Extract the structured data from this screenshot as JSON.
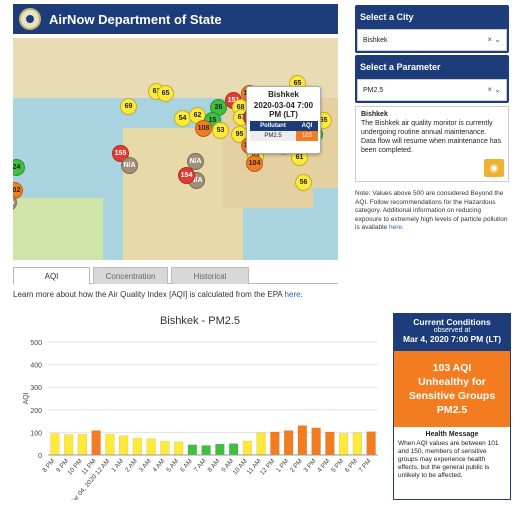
{
  "header": {
    "title": "AirNow Department of State"
  },
  "popup": {
    "city": "Bishkek",
    "datetime": "2020-03-04 7:00 PM (LT)",
    "col_pollutant": "Pollutant",
    "col_aqi": "AQI",
    "pollutant": "PM2.5",
    "aqi": "103"
  },
  "map_markers": [
    {
      "label": "62",
      "color": "#ffea3a"
    },
    {
      "label": "65",
      "color": "#ffea3a"
    },
    {
      "label": "69",
      "color": "#ffea3a"
    },
    {
      "label": "151",
      "color": "#e53a2f"
    },
    {
      "label": "121",
      "color": "#f47c20"
    },
    {
      "label": "26",
      "color": "#3fbf3f"
    },
    {
      "label": "68",
      "color": "#ffea3a"
    },
    {
      "label": "65",
      "color": "#ffea3a"
    },
    {
      "label": "56",
      "color": "#ffea3a"
    },
    {
      "label": "54",
      "color": "#ffea3a"
    },
    {
      "label": "62",
      "color": "#ffea3a"
    },
    {
      "label": "15",
      "color": "#3fbf3f"
    },
    {
      "label": "67",
      "color": "#ffea3a"
    },
    {
      "label": "177",
      "color": "#e53a2f"
    },
    {
      "label": "156",
      "color": "#e53a2f"
    },
    {
      "label": "112",
      "color": "#f47c20"
    },
    {
      "label": "93",
      "color": "#ffea3a"
    },
    {
      "label": "65",
      "color": "#ffea3a"
    },
    {
      "label": "108",
      "color": "#f47c20"
    },
    {
      "label": "53",
      "color": "#ffea3a"
    },
    {
      "label": "95",
      "color": "#ffea3a"
    },
    {
      "label": "137",
      "color": "#f47c20"
    },
    {
      "label": "76",
      "color": "#ffea3a"
    },
    {
      "label": "25",
      "color": "#3fbf3f"
    },
    {
      "label": "116",
      "color": "#f47c20"
    },
    {
      "label": "74",
      "color": "#ffea3a"
    },
    {
      "label": "87",
      "color": "#ffea3a"
    },
    {
      "label": "91",
      "color": "#ffea3a"
    },
    {
      "label": "83",
      "color": "#ffea3a"
    },
    {
      "label": "61",
      "color": "#ffea3a"
    },
    {
      "label": "104",
      "color": "#f47c20"
    },
    {
      "label": "24",
      "color": "#3fbf3f"
    },
    {
      "label": "155",
      "color": "#e53a2f"
    },
    {
      "label": "102",
      "color": "#f47c20"
    },
    {
      "label": "N/A",
      "color": "#a08d7a"
    },
    {
      "label": "N/A",
      "color": "#a08d7a"
    },
    {
      "label": "N/A",
      "color": "#a08d7a"
    },
    {
      "label": "N/A",
      "color": "#a08d7a"
    },
    {
      "label": "154",
      "color": "#e53a2f"
    },
    {
      "label": "56",
      "color": "#ffea3a"
    }
  ],
  "city_panel": {
    "title": "Select a City",
    "value": "Bishkek"
  },
  "param_panel": {
    "title": "Select a Parameter",
    "value": "PM2.5"
  },
  "icons": {
    "clear": "×",
    "dropdown": "⌄",
    "rss": "rss-icon"
  },
  "notice": {
    "title": "Bishkek",
    "text": "The Bishkek air quality monitor is currently undergoing routine annual maintenance. Data flow will resume when maintenance has been completed."
  },
  "note": {
    "text": "Note: Values above 500 are considered Beyond the AQI. Follow recommendations for the Hazardous category. Additional information on reducing exposure to extremely high levels of particle pollution is available ",
    "link": "here",
    "end": "."
  },
  "tabs": [
    {
      "label": "AQI",
      "active": true
    },
    {
      "label": "Concentration",
      "active": false
    },
    {
      "label": "Historical",
      "active": false
    }
  ],
  "learn": {
    "text": "Learn more about how the Air Quality Index [AQI] is calculated from the EPA ",
    "link": "here",
    "end": "."
  },
  "conditions": {
    "title": "Current Conditions",
    "observed": "observed at",
    "datetime": "Mar 4, 2020 7:00 PM (LT)",
    "aqi_line": "103 AQI",
    "category": "Unhealthy for Sensitive Groups",
    "pollutant": "PM2.5",
    "msg_title": "Health Message",
    "msg": "When AQI values are between 101 and 150, members of sensitive groups may experience health effects, but the general public is unlikely to be affected."
  },
  "chart_data": {
    "type": "bar",
    "title": "Bishkek - PM2.5",
    "ylabel": "AQI",
    "xlabel": "",
    "ylim": [
      0,
      500
    ],
    "yticks": [
      0,
      100,
      200,
      300,
      400,
      500
    ],
    "categories": [
      "8 PM",
      "9 PM",
      "10 PM",
      "11 PM",
      "Mar 04, 2020 12 AM",
      "1 AM",
      "2 AM",
      "3 AM",
      "4 AM",
      "5 AM",
      "6 AM",
      "7 AM",
      "8 AM",
      "9 AM",
      "10 AM",
      "11 AM",
      "12 PM",
      "1 PM",
      "2 PM",
      "3 PM",
      "4 PM",
      "5 PM",
      "6 PM",
      "7 PM"
    ],
    "values": [
      95,
      90,
      92,
      108,
      92,
      85,
      75,
      72,
      62,
      58,
      45,
      42,
      48,
      50,
      62,
      98,
      102,
      108,
      130,
      120,
      102,
      95,
      98,
      103
    ],
    "colors": {
      "good": "#3fbf3f",
      "moderate": "#ffea3a",
      "usg": "#f47c20"
    },
    "legend": "none",
    "grid": true
  }
}
